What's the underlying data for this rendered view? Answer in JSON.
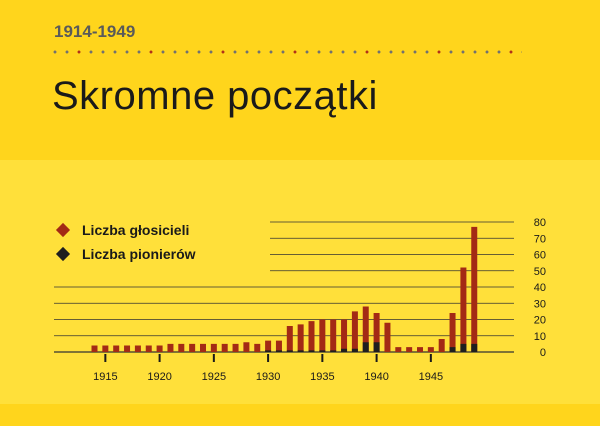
{
  "header": {
    "date_range": "1914-1949",
    "title": "Skromne początki"
  },
  "colors": {
    "publishers": "#A32A15",
    "pioneers": "#1F1F1F",
    "divider_gray": "#707070",
    "divider_red": "#B0301A",
    "gridline": "#333333"
  },
  "chart_data": {
    "type": "bar",
    "stacked": true,
    "x": [
      1914,
      1915,
      1916,
      1917,
      1918,
      1919,
      1920,
      1921,
      1922,
      1923,
      1924,
      1925,
      1926,
      1927,
      1928,
      1929,
      1930,
      1931,
      1932,
      1933,
      1934,
      1935,
      1936,
      1937,
      1938,
      1939,
      1940,
      1941,
      1942,
      1943,
      1944,
      1945,
      1946,
      1947,
      1948,
      1949
    ],
    "x_ticks": [
      1915,
      1920,
      1925,
      1930,
      1935,
      1940,
      1945
    ],
    "y_ticks": [
      0,
      10,
      20,
      30,
      40,
      50,
      60,
      70,
      80
    ],
    "ylim": [
      0,
      80
    ],
    "legend_placement": "top-left",
    "grid": true,
    "series": [
      {
        "name": "Liczba głosicieli",
        "values": [
          4,
          4,
          4,
          4,
          4,
          4,
          4,
          5,
          5,
          5,
          5,
          5,
          5,
          5,
          6,
          5,
          7,
          7,
          16,
          17,
          19,
          20,
          20,
          20,
          25,
          28,
          24,
          18,
          3,
          3,
          3,
          3,
          8,
          24,
          52,
          77
        ]
      },
      {
        "name": "Liczba pionierów",
        "values": [
          0,
          0,
          0,
          0,
          0,
          0,
          0,
          0,
          0,
          0,
          0,
          0,
          0,
          0,
          0,
          0,
          1,
          1,
          1,
          1,
          1,
          1,
          1,
          2,
          2,
          6,
          6,
          0,
          0,
          0,
          0,
          0,
          0,
          3,
          5,
          5
        ]
      }
    ]
  }
}
